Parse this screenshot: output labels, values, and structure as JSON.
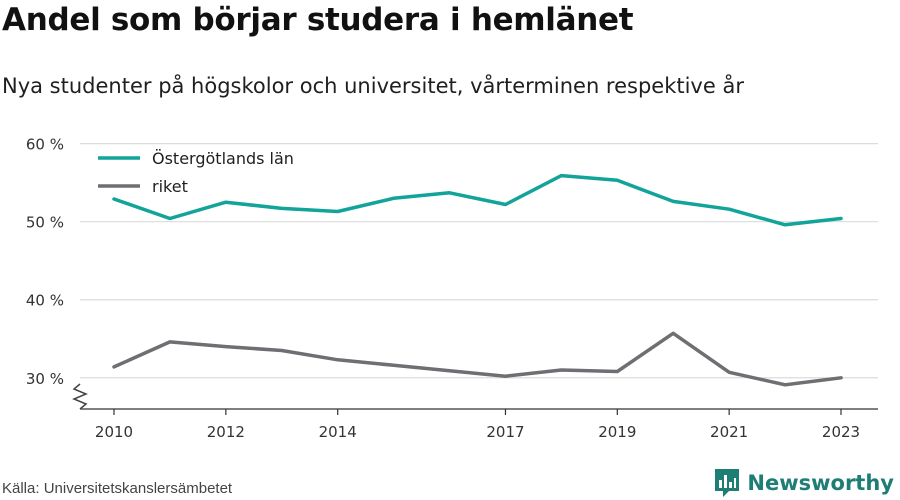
{
  "header": {
    "title": "Andel som börjar studera i hemlänet",
    "subtitle": "Nya studenter på högskolor och universitet, vårterminen respektive år"
  },
  "footer": {
    "source": "Källa: Universitetskanslersämbetet",
    "brand": "Newsworthy",
    "brand_icon": "bar-chart-logo-icon",
    "brand_color": "#1e7d74"
  },
  "chart_data": {
    "type": "line",
    "x": [
      2010,
      2011,
      2012,
      2013,
      2014,
      2015,
      2016,
      2017,
      2018,
      2019,
      2020,
      2021,
      2022,
      2023
    ],
    "x_tick_labels": [
      "2010",
      "2012",
      "2014",
      "2017",
      "2019",
      "2021",
      "2023"
    ],
    "y_ticks": [
      30,
      40,
      50,
      60
    ],
    "y_tick_labels": [
      "30 %",
      "40 %",
      "50 %",
      "60 %"
    ],
    "ylim": [
      26,
      62
    ],
    "y_axis_break": true,
    "grid": true,
    "legend_position": "top-left",
    "series": [
      {
        "name": "Östergötlands län",
        "color": "#12a39a",
        "values": [
          52.9,
          50.4,
          52.5,
          51.7,
          51.3,
          53.0,
          53.7,
          52.2,
          55.9,
          55.3,
          52.6,
          51.6,
          49.6,
          50.4
        ]
      },
      {
        "name": "riket",
        "color": "#6e6e73",
        "values": [
          31.4,
          34.6,
          34.0,
          33.5,
          32.3,
          31.6,
          30.9,
          30.2,
          31.0,
          30.8,
          35.7,
          30.7,
          29.1,
          30.0
        ]
      }
    ]
  }
}
